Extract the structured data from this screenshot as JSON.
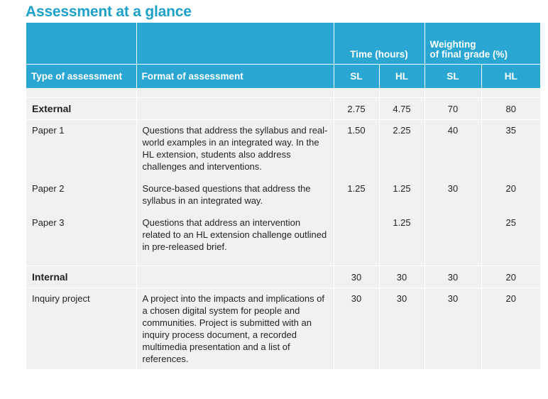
{
  "title": "Assessment at a glance",
  "header": {
    "type_label": "Type of assessment",
    "format_label": "Format of assessment",
    "time_label": "Time (hours)",
    "weighting_label_line1": "Weighting",
    "weighting_label_line2": "of final grade (%)",
    "sl1": "SL",
    "hl1": "HL",
    "sl2": "SL",
    "hl2": "HL"
  },
  "external": {
    "label": "External",
    "time_sl": "2.75",
    "time_hl": "4.75",
    "w_sl": "70",
    "w_hl": "80"
  },
  "rows_external": [
    {
      "type": "Paper 1",
      "format": "Questions that address the syllabus and real-world examples in an integrated way. In the HL extension, students also address challenges and interventions.",
      "time_sl": "1.50",
      "time_hl": "2.25",
      "w_sl": "40",
      "w_hl": "35"
    },
    {
      "type": "Paper 2",
      "format": "Source-based questions that address the syllabus in an integrated way.",
      "time_sl": "1.25",
      "time_hl": "1.25",
      "w_sl": "30",
      "w_hl": "20"
    },
    {
      "type": "Paper 3",
      "format": "Questions that address an intervention related to an HL extension challenge outlined in pre-released brief.",
      "time_sl": "",
      "time_hl": "1.25",
      "w_sl": "",
      "w_hl": "25"
    }
  ],
  "internal": {
    "label": "Internal",
    "time_sl": "30",
    "time_hl": "30",
    "w_sl": "30",
    "w_hl": "20"
  },
  "rows_internal": [
    {
      "type": "Inquiry project",
      "format": "A project into the impacts and implications of a chosen digital system for people and communities. Project is submitted with an inquiry process document, a recorded multimedia presentation and a list of references.",
      "time_sl": "30",
      "time_hl": "30",
      "w_sl": "30",
      "w_hl": "20"
    }
  ]
}
